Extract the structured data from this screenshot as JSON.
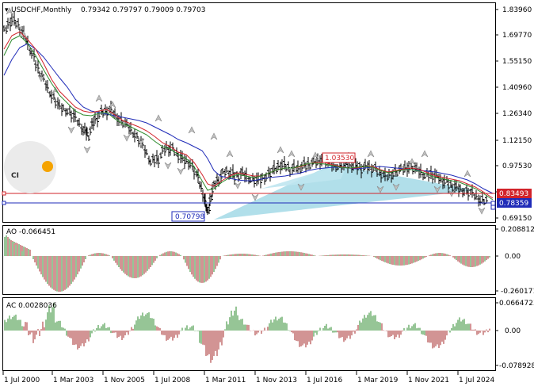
{
  "header": {
    "symbol": "USDCHF,Monthly",
    "ohlc": "0.79342 0.79797 0.79009 0.79703"
  },
  "main_axis": {
    "ticks": [
      "1.83960",
      "1.69770",
      "1.55150",
      "1.40960",
      "1.26340",
      "1.12150",
      "0.97530",
      "0.83340",
      "0.69150"
    ],
    "price_tag_red": "0.83493",
    "price_tag_blue": "0.78359"
  },
  "annotations": {
    "low_label": "0.70798",
    "high_label": "1.03530"
  },
  "ao": {
    "label": "AO -0.066451",
    "ticks": [
      "0.208812",
      "0.00",
      "-0.260171"
    ]
  },
  "ac": {
    "label": "AC 0.0028036",
    "ticks": [
      "0.0664723",
      "0.00",
      "-0.078928"
    ]
  },
  "x_axis": {
    "dates": [
      "1 Jul 2000",
      "1 Mar 2003",
      "1 Nov 2005",
      "1 Jul 2008",
      "1 Mar 2011",
      "1 Nov 2013",
      "1 Jul 2016",
      "1 Mar 2019",
      "1 Nov 2021",
      "1 Jul 2024"
    ]
  },
  "logo": {
    "text": "CI"
  },
  "colors": {
    "red_line": "#d2232a",
    "blue_line": "#1f2bb8",
    "green_bar": "#2e8b2e",
    "red_bar": "#a52a2a",
    "triangle": "#a8dce8",
    "logo_dot": "#f5a300"
  },
  "chart_data": {
    "type": "line",
    "title": "USDCHF,Monthly",
    "x": [
      "1 Jul 2000",
      "1 Mar 2003",
      "1 Nov 2005",
      "1 Jul 2008",
      "1 Mar 2011",
      "1 Nov 2013",
      "1 Jul 2016",
      "1 Mar 2019",
      "1 Nov 2021",
      "1 Jul 2024"
    ],
    "series": [
      {
        "values": [
          1.72,
          1.3,
          1.25,
          1.08,
          0.76,
          0.92,
          0.98,
          0.99,
          0.92,
          0.86
        ]
      }
    ],
    "ylim": [
      0.6915,
      1.8396
    ]
  }
}
